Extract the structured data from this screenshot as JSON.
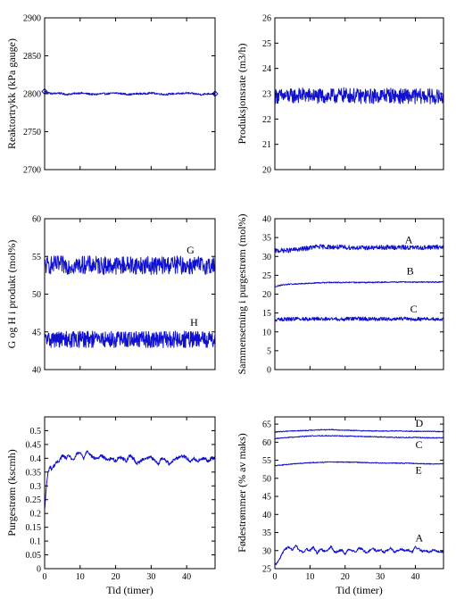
{
  "chart_data": [
    {
      "type": "line",
      "ylabel": "Reaktortrykk (kPa gauge)",
      "xlabel": "",
      "xlim": [
        0,
        48
      ],
      "ylim": [
        2700,
        2900
      ],
      "xticks": [
        0,
        10,
        20,
        30,
        40
      ],
      "yticks": [
        2700,
        2750,
        2800,
        2850,
        2900
      ],
      "show_xtick_labels": false,
      "series": [
        {
          "x": [
            0,
            2,
            4,
            6,
            8,
            10,
            12,
            14,
            16,
            18,
            20,
            22,
            24,
            26,
            28,
            30,
            32,
            34,
            36,
            38,
            40,
            42,
            44,
            46,
            48
          ],
          "y": [
            2803,
            2800,
            2801,
            2799,
            2800,
            2801,
            2800,
            2799,
            2800,
            2800,
            2801,
            2800,
            2799,
            2800,
            2800,
            2801,
            2800,
            2799,
            2800,
            2800,
            2801,
            2800,
            2799,
            2800,
            2800
          ],
          "noise": 1.2,
          "markers_at": [
            0,
            48
          ]
        }
      ]
    },
    {
      "type": "line",
      "ylabel": "Produksjonsrate (m3/h)",
      "xlabel": "",
      "xlim": [
        0,
        48
      ],
      "ylim": [
        20,
        26
      ],
      "xticks": [
        0,
        10,
        20,
        30,
        40
      ],
      "yticks": [
        20,
        21,
        22,
        23,
        24,
        25,
        26
      ],
      "show_xtick_labels": false,
      "series": [
        {
          "x": [
            0,
            4,
            8,
            12,
            16,
            20,
            24,
            28,
            32,
            36,
            40,
            44,
            48
          ],
          "y": [
            22.9,
            22.9,
            22.95,
            22.9,
            22.9,
            22.95,
            22.9,
            22.9,
            22.95,
            22.9,
            22.9,
            22.9,
            22.85
          ],
          "noise": 0.3
        }
      ]
    },
    {
      "type": "line",
      "ylabel": "G og H i produkt (mol%)",
      "xlabel": "",
      "xlim": [
        0,
        48
      ],
      "ylim": [
        40,
        60
      ],
      "xticks": [
        0,
        10,
        20,
        30,
        40
      ],
      "yticks": [
        40,
        45,
        50,
        55,
        60
      ],
      "show_xtick_labels": false,
      "series": [
        {
          "x": [
            0,
            4,
            8,
            12,
            16,
            20,
            24,
            28,
            32,
            36,
            40,
            44,
            48
          ],
          "y": [
            53.8,
            53.9,
            53.8,
            53.9,
            53.8,
            53.8,
            53.9,
            53.8,
            53.8,
            53.9,
            53.8,
            53.8,
            53.8
          ],
          "noise": 1.2,
          "label": "G",
          "label_at": [
            40,
            55.4
          ]
        },
        {
          "x": [
            0,
            4,
            8,
            12,
            16,
            20,
            24,
            28,
            32,
            36,
            40,
            44,
            48
          ],
          "y": [
            44,
            44,
            44,
            44,
            44,
            44,
            44,
            44,
            44,
            44,
            44,
            44,
            44
          ],
          "noise": 1.1,
          "label": "H",
          "label_at": [
            41,
            45.8
          ]
        }
      ]
    },
    {
      "type": "line",
      "ylabel": "Sammensetning i purgestrøm (mol%)",
      "xlabel": "",
      "xlim": [
        0,
        48
      ],
      "ylim": [
        0,
        40
      ],
      "xticks": [
        0,
        10,
        20,
        30,
        40
      ],
      "yticks": [
        0,
        5,
        10,
        15,
        20,
        25,
        30,
        35,
        40
      ],
      "show_xtick_labels": false,
      "series": [
        {
          "x": [
            0,
            4,
            8,
            12,
            16,
            20,
            24,
            28,
            32,
            36,
            40,
            44,
            48
          ],
          "y": [
            31.5,
            31.6,
            32,
            32.6,
            32.5,
            32.4,
            32.3,
            32.3,
            32.4,
            32.4,
            32.3,
            32.4,
            32.5
          ],
          "noise": 0.6,
          "label": "A",
          "label_at": [
            37,
            33.5
          ]
        },
        {
          "x": [
            0,
            2,
            4,
            8,
            12,
            16,
            20,
            24,
            28,
            32,
            36,
            40,
            44,
            48
          ],
          "y": [
            22,
            22.4,
            22.6,
            22.8,
            23,
            23.1,
            23.1,
            23.1,
            23.1,
            23.2,
            23.2,
            23.2,
            23.2,
            23.2
          ],
          "noise": 0.15,
          "label": "B",
          "label_at": [
            37.5,
            25.2
          ]
        },
        {
          "x": [
            0,
            4,
            8,
            12,
            16,
            20,
            24,
            28,
            32,
            36,
            40,
            44,
            48
          ],
          "y": [
            13.2,
            13.4,
            13.4,
            13.5,
            13.4,
            13.4,
            13.5,
            13.4,
            13.4,
            13.5,
            13.4,
            13.4,
            13.3
          ],
          "noise": 0.5,
          "label": "C",
          "label_at": [
            38.5,
            15.1
          ]
        }
      ]
    },
    {
      "type": "line",
      "ylabel": "Purgestrøm (kscmh)",
      "xlabel": "Tid (timer)",
      "xlim": [
        0,
        48
      ],
      "ylim": [
        0,
        0.55
      ],
      "xticks": [
        0,
        10,
        20,
        30,
        40
      ],
      "yticks": [
        0,
        0.05,
        0.1,
        0.15,
        0.2,
        0.25,
        0.3,
        0.35,
        0.4,
        0.45,
        0.5
      ],
      "show_xtick_labels": true,
      "series": [
        {
          "x": [
            0,
            0.5,
            1,
            1.5,
            2,
            3,
            4,
            5,
            6,
            7,
            8,
            9,
            10,
            11,
            12,
            13,
            14,
            15,
            16,
            17,
            18,
            19,
            20,
            21,
            22,
            23,
            24,
            25,
            26,
            27,
            28,
            29,
            30,
            31,
            32,
            33,
            34,
            35,
            36,
            37,
            38,
            39,
            40,
            41,
            42,
            43,
            44,
            45,
            46,
            47,
            48
          ],
          "y": [
            0.21,
            0.3,
            0.35,
            0.37,
            0.36,
            0.38,
            0.39,
            0.41,
            0.4,
            0.41,
            0.39,
            0.415,
            0.42,
            0.4,
            0.43,
            0.41,
            0.4,
            0.4,
            0.41,
            0.4,
            0.395,
            0.4,
            0.39,
            0.405,
            0.4,
            0.39,
            0.41,
            0.4,
            0.38,
            0.39,
            0.4,
            0.4,
            0.405,
            0.39,
            0.38,
            0.4,
            0.395,
            0.38,
            0.39,
            0.4,
            0.405,
            0.41,
            0.4,
            0.39,
            0.4,
            0.39,
            0.395,
            0.4,
            0.39,
            0.4,
            0.4
          ],
          "noise": 0.006
        }
      ]
    },
    {
      "type": "line",
      "ylabel": "Fødestrømmer (% av maks)",
      "xlabel": "Tid (timer)",
      "xlim": [
        0,
        48
      ],
      "ylim": [
        25,
        67
      ],
      "xticks": [
        0,
        10,
        20,
        30,
        40
      ],
      "yticks": [
        25,
        30,
        35,
        40,
        45,
        50,
        55,
        60,
        65
      ],
      "show_xtick_labels": true,
      "series": [
        {
          "x": [
            0,
            4,
            8,
            12,
            16,
            20,
            24,
            28,
            32,
            36,
            40,
            44,
            48
          ],
          "y": [
            62.8,
            63.1,
            63.2,
            63.4,
            63.5,
            63.3,
            63.2,
            63.1,
            63.1,
            63.1,
            63,
            63,
            62.9
          ],
          "noise": 0.12,
          "label": "D",
          "label_at": [
            40,
            64.3
          ]
        },
        {
          "x": [
            0,
            4,
            8,
            12,
            16,
            20,
            24,
            28,
            32,
            36,
            40,
            44,
            48
          ],
          "y": [
            61,
            61.3,
            61.6,
            61.8,
            61.8,
            61.7,
            61.6,
            61.5,
            61.4,
            61.3,
            61.3,
            61.2,
            61.2
          ],
          "noise": 0.12,
          "label": "C",
          "label_at": [
            40,
            58.3
          ]
        },
        {
          "x": [
            0,
            4,
            8,
            12,
            16,
            20,
            24,
            28,
            32,
            36,
            40,
            44,
            48
          ],
          "y": [
            53.5,
            53.9,
            54.2,
            54.4,
            54.5,
            54.5,
            54.4,
            54.3,
            54.2,
            54.2,
            54.1,
            54,
            54
          ],
          "noise": 0.12,
          "label": "E",
          "label_at": [
            40,
            51.3
          ]
        },
        {
          "x": [
            0,
            1,
            2,
            3,
            4,
            5,
            6,
            7,
            8,
            9,
            10,
            11,
            12,
            13,
            14,
            15,
            16,
            17,
            18,
            19,
            20,
            21,
            22,
            23,
            24,
            25,
            26,
            27,
            28,
            29,
            30,
            31,
            32,
            33,
            34,
            35,
            36,
            37,
            38,
            39,
            40,
            41,
            42,
            43,
            44,
            45,
            46,
            47,
            48
          ],
          "y": [
            26,
            27,
            29,
            30.5,
            31,
            30.2,
            31.5,
            30,
            29.5,
            30.5,
            30,
            31,
            29.2,
            30.5,
            29.8,
            30,
            31.2,
            29.5,
            29.8,
            30.2,
            29,
            30.5,
            30,
            29.5,
            30.8,
            30.2,
            29.5,
            30,
            30.5,
            29.8,
            30.3,
            29.5,
            30,
            30.8,
            29.5,
            30,
            30.5,
            29.8,
            30.2,
            29.5,
            31,
            30.5,
            29.8,
            30,
            29.5,
            30.3,
            29.8,
            29.5,
            29.8
          ],
          "noise": 0.3,
          "label": "A",
          "label_at": [
            40,
            32.5
          ]
        }
      ]
    }
  ]
}
